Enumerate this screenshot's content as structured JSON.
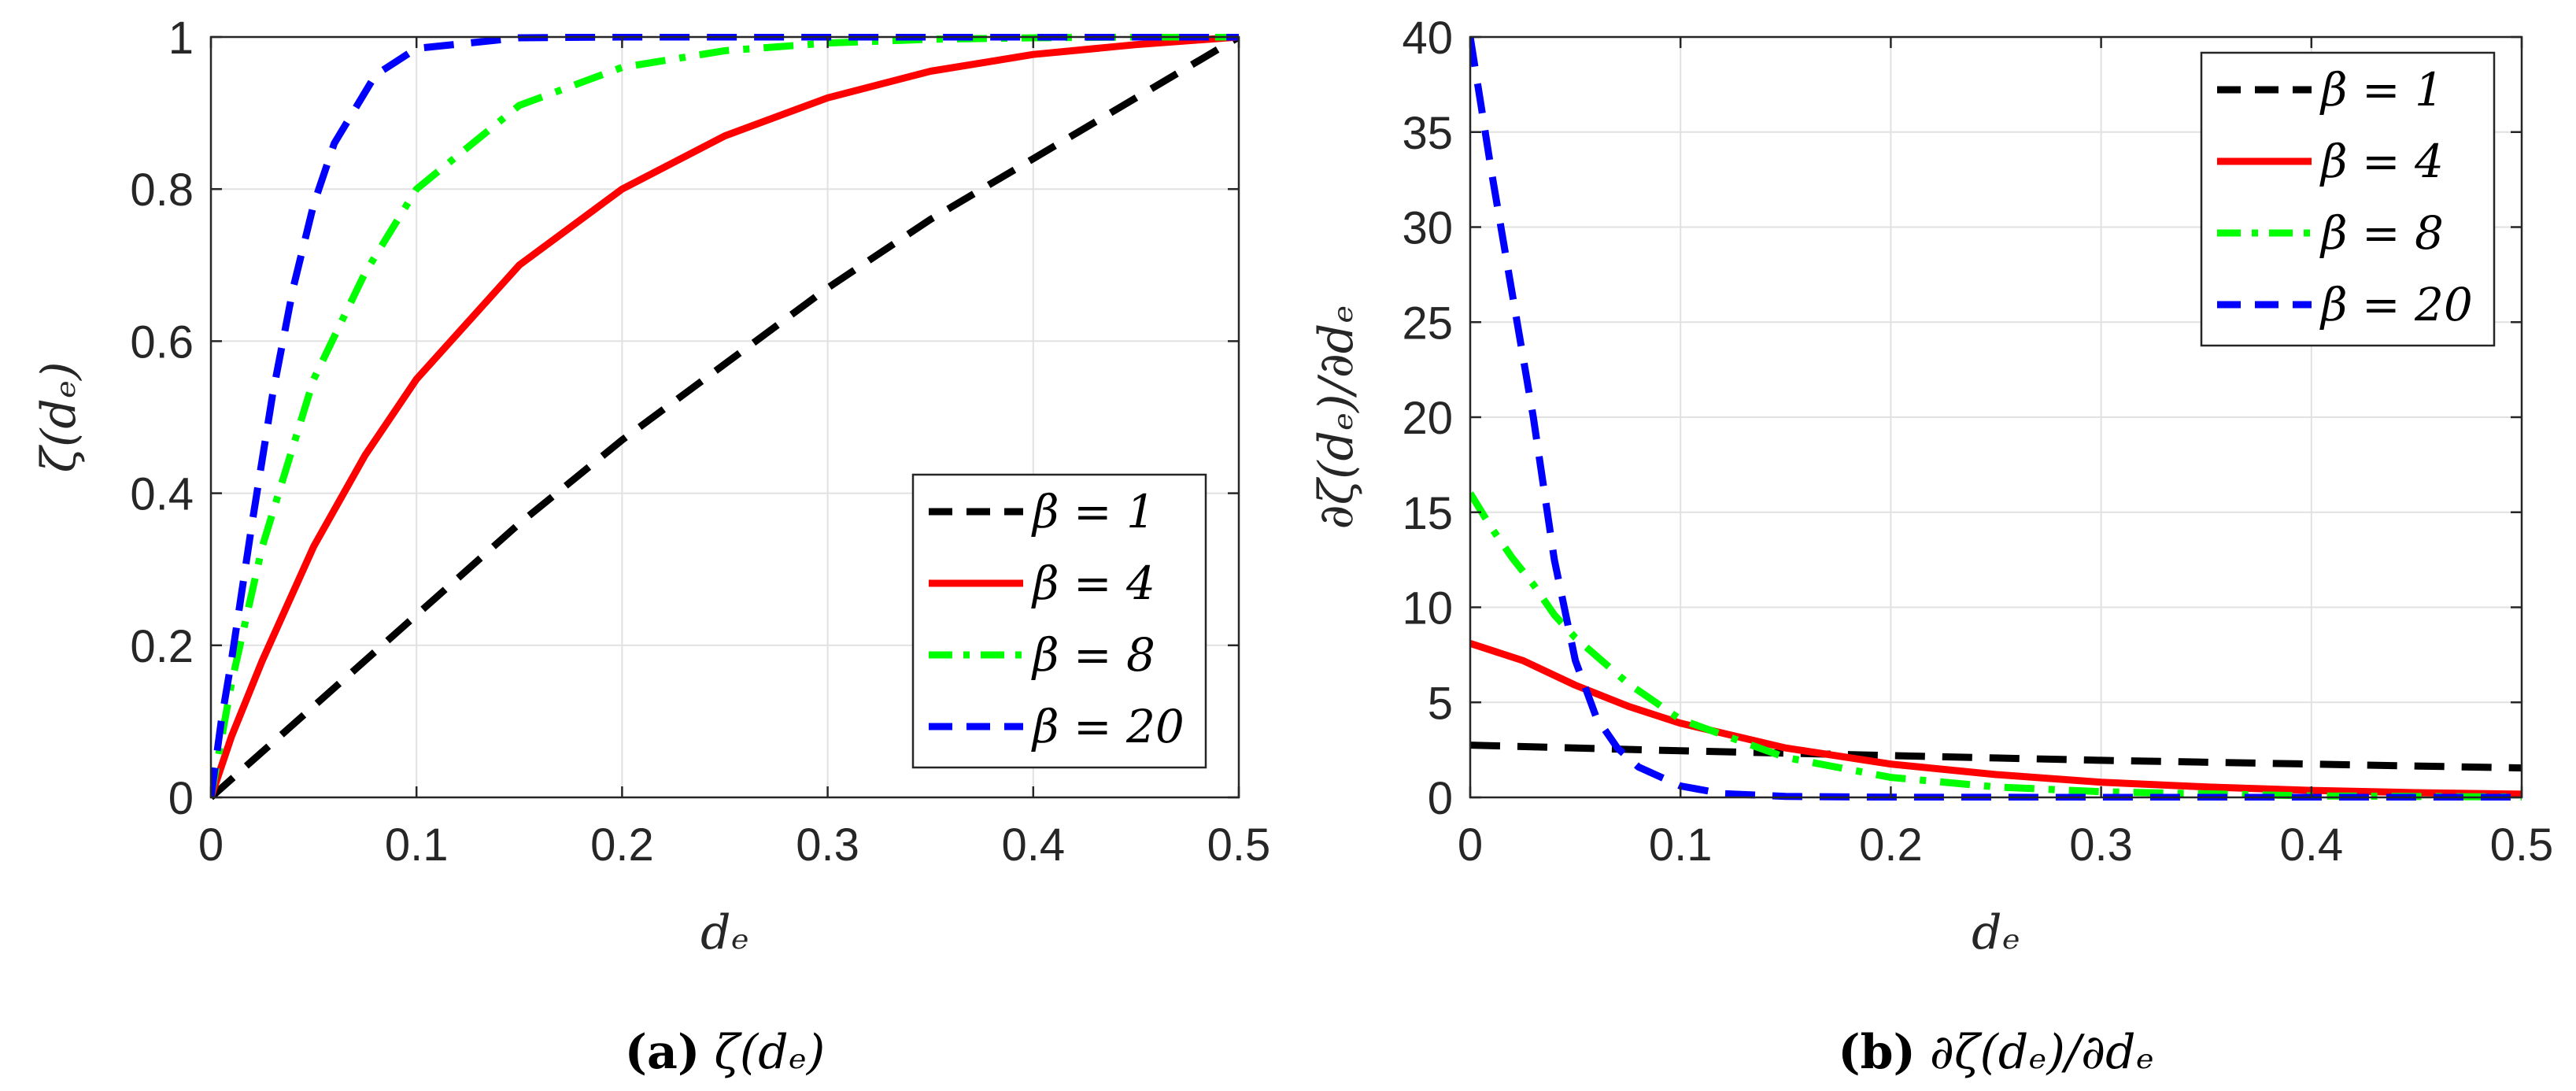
{
  "chart_data": [
    {
      "type": "line",
      "panel": "left",
      "caption_letter": "(a)",
      "caption_text": "ζ(dₑ)",
      "xlabel": "dₑ",
      "ylabel": "ζ(dₑ)",
      "xlim": [
        0,
        0.5
      ],
      "ylim": [
        0,
        1
      ],
      "xticks": [
        0,
        0.1,
        0.2,
        0.3,
        0.4,
        0.5
      ],
      "xtick_labels": [
        "0",
        "0.1",
        "0.2",
        "0.3",
        "0.4",
        "0.5"
      ],
      "yticks": [
        0,
        0.2,
        0.4,
        0.6,
        0.8,
        1
      ],
      "ytick_labels": [
        "0",
        "0.2",
        "0.4",
        "0.6",
        "0.8",
        "1"
      ],
      "grid": true,
      "legend_position": "lower-right",
      "series": [
        {
          "name": "β = 1",
          "color": "#000000",
          "dash": "dashed",
          "x": [
            0,
            0.05,
            0.1,
            0.15,
            0.2,
            0.25,
            0.3,
            0.35,
            0.4,
            0.45,
            0.5
          ],
          "y": [
            0,
            0.12,
            0.24,
            0.36,
            0.47,
            0.57,
            0.67,
            0.76,
            0.84,
            0.92,
            1.0
          ]
        },
        {
          "name": "β = 4",
          "color": "#ff0000",
          "dash": "solid",
          "x": [
            0,
            0.01,
            0.025,
            0.05,
            0.075,
            0.1,
            0.15,
            0.2,
            0.25,
            0.3,
            0.35,
            0.4,
            0.45,
            0.5
          ],
          "y": [
            0,
            0.08,
            0.18,
            0.33,
            0.45,
            0.55,
            0.7,
            0.8,
            0.87,
            0.92,
            0.955,
            0.977,
            0.99,
            1.0
          ]
        },
        {
          "name": "β = 8",
          "color": "#00ff00",
          "dash": "dashdot",
          "x": [
            0,
            0.01,
            0.025,
            0.05,
            0.075,
            0.1,
            0.15,
            0.2,
            0.25,
            0.3,
            0.35,
            0.4,
            0.45,
            0.5
          ],
          "y": [
            0,
            0.15,
            0.33,
            0.55,
            0.69,
            0.8,
            0.91,
            0.96,
            0.982,
            0.992,
            0.997,
            0.999,
            1.0,
            1.0
          ]
        },
        {
          "name": "β = 20",
          "color": "#0000ff",
          "dash": "dashed",
          "x": [
            0,
            0.005,
            0.01,
            0.02,
            0.03,
            0.04,
            0.05,
            0.06,
            0.08,
            0.1,
            0.15,
            0.2,
            0.3,
            0.4,
            0.5
          ],
          "y": [
            0,
            0.1,
            0.18,
            0.36,
            0.53,
            0.67,
            0.78,
            0.86,
            0.95,
            0.985,
            0.999,
            1.0,
            1.0,
            1.0,
            1.0
          ]
        }
      ]
    },
    {
      "type": "line",
      "panel": "right",
      "caption_letter": "(b)",
      "caption_text": "∂ζ(dₑ)/∂dₑ",
      "xlabel": "dₑ",
      "ylabel": "∂ζ(dₑ)/∂dₑ",
      "xlim": [
        0,
        0.5
      ],
      "ylim": [
        0,
        40
      ],
      "xticks": [
        0,
        0.1,
        0.2,
        0.3,
        0.4,
        0.5
      ],
      "xtick_labels": [
        "0",
        "0.1",
        "0.2",
        "0.3",
        "0.4",
        "0.5"
      ],
      "yticks": [
        0,
        5,
        10,
        15,
        20,
        25,
        30,
        35,
        40
      ],
      "ytick_labels": [
        "0",
        "5",
        "10",
        "15",
        "20",
        "25",
        "30",
        "35",
        "40"
      ],
      "grid": true,
      "legend_position": "top-right",
      "series": [
        {
          "name": "β = 1",
          "color": "#000000",
          "dash": "dashed",
          "x": [
            0,
            0.1,
            0.2,
            0.3,
            0.4,
            0.5
          ],
          "y": [
            2.75,
            2.45,
            2.2,
            1.95,
            1.75,
            1.55
          ]
        },
        {
          "name": "β = 4",
          "color": "#ff0000",
          "dash": "solid",
          "x": [
            0,
            0.025,
            0.05,
            0.075,
            0.1,
            0.15,
            0.2,
            0.25,
            0.3,
            0.35,
            0.4,
            0.45,
            0.5
          ],
          "y": [
            8.1,
            7.2,
            5.9,
            4.8,
            3.9,
            2.6,
            1.75,
            1.2,
            0.8,
            0.55,
            0.37,
            0.25,
            0.17
          ]
        },
        {
          "name": "β = 8",
          "color": "#00ff00",
          "dash": "dashdot",
          "x": [
            0,
            0.01,
            0.02,
            0.03,
            0.04,
            0.05,
            0.075,
            0.1,
            0.15,
            0.2,
            0.25,
            0.3,
            0.4,
            0.5
          ],
          "y": [
            16,
            14.2,
            12.6,
            11.2,
            9.6,
            8.4,
            6.0,
            4.1,
            2.1,
            1.05,
            0.55,
            0.3,
            0.08,
            0.02
          ]
        },
        {
          "name": "β = 20",
          "color": "#0000ff",
          "dash": "dashed",
          "x": [
            0,
            0.005,
            0.01,
            0.02,
            0.03,
            0.04,
            0.05,
            0.06,
            0.07,
            0.08,
            0.1,
            0.12,
            0.15,
            0.2,
            0.3,
            0.4,
            0.5
          ],
          "y": [
            40,
            36.5,
            33,
            26.5,
            20,
            12.5,
            7.2,
            4.2,
            2.6,
            1.6,
            0.6,
            0.2,
            0.05,
            0.01,
            0,
            0,
            0
          ]
        }
      ]
    }
  ]
}
